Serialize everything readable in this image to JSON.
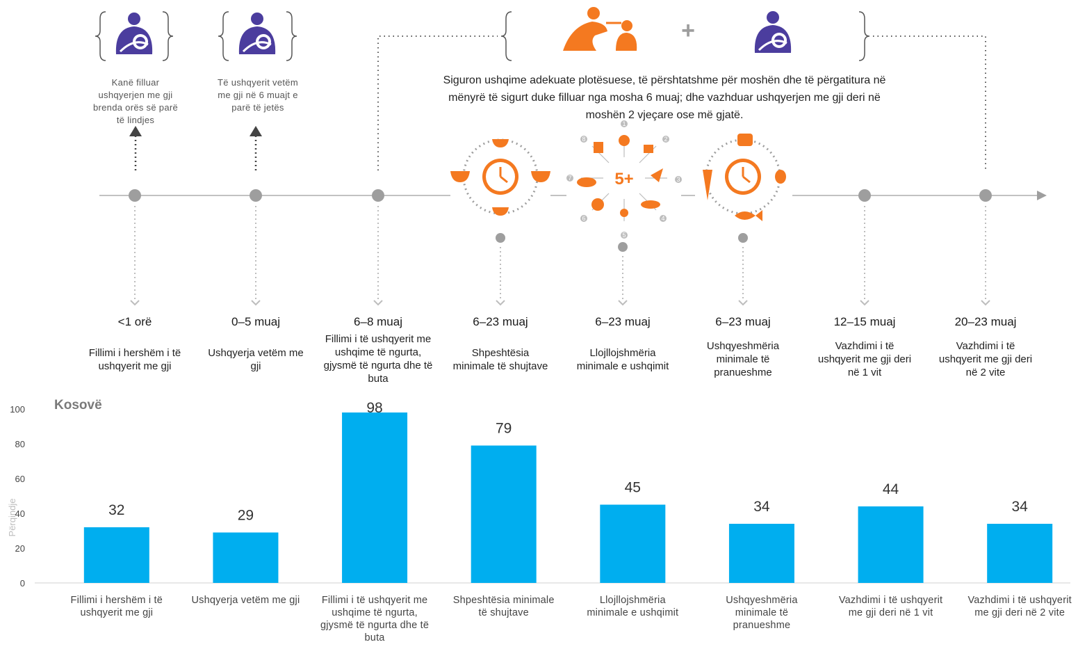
{
  "timeline": {
    "description_lines": [
      "Siguron ushqime adekuate plotësuese, të përshtatshme për moshën dhe të përgatitura në",
      "mënyrë të sigurt duke filluar nga mosha 6 muaj; dhe vazhduar ushqyerjen me gji deri në",
      "moshën 2 vjeçare ose më gjatë."
    ],
    "notes": [
      {
        "lines": [
          "Kanë filluar",
          "ushqyerjen me gji",
          "brenda orës së parë",
          "të lindjes"
        ]
      },
      {
        "lines": [
          "Të ushqyerit vetëm",
          "me gji në 6 muajt e",
          "parë të jetës"
        ]
      }
    ],
    "dietary_diversity_number": "5+",
    "food_group_numbers": [
      "1",
      "2",
      "3",
      "4",
      "5",
      "6",
      "7",
      "8"
    ],
    "plus_sign": "+",
    "stages": [
      {
        "range": "<1 orë",
        "desc": [
          "Fillimi i hershëm i të",
          "ushqyerit me gji"
        ]
      },
      {
        "range": "0–5 muaj",
        "desc": [
          "Ushqyerja vetëm me",
          "gji"
        ]
      },
      {
        "range": "6–8 muaj",
        "desc": [
          "Fillimi i të ushqyerit me",
          "ushqime të ngurta,",
          "gjysmë të ngurta dhe të",
          "buta"
        ]
      },
      {
        "range": "6–23 muaj",
        "desc": [
          "Shpeshtësia",
          "minimale të shujtave"
        ]
      },
      {
        "range": "6–23 muaj",
        "desc": [
          "Llojllojshmëria",
          "minimale e  ushqimit"
        ]
      },
      {
        "range": "6–23 muaj",
        "desc": [
          "Ushqyeshmëria",
          "minimale të",
          "pranueshme"
        ]
      },
      {
        "range": "12–15 muaj",
        "desc": [
          "Vazhdimi i të",
          "ushqyerit me gji deri",
          "në 1 vit"
        ]
      },
      {
        "range": "20–23 muaj",
        "desc": [
          "Vazhdimi i të",
          "ushqyerit me gji deri",
          "në 2 vite"
        ]
      }
    ]
  },
  "colors": {
    "bar": "#00aeef",
    "accent_orange": "#f47920",
    "accent_purple": "#4b3d9e",
    "timeline_gray": "#9e9e9e"
  },
  "icons": [
    "breastfeeding-icon",
    "feeding-child-icon",
    "clock-icon",
    "bowl-icon",
    "fish-icon",
    "carrot-icon",
    "bread-icon",
    "egg-icon"
  ],
  "chart_data": {
    "type": "bar",
    "title": "Kosovë",
    "ylabel": "Përqindje",
    "xlabel": "",
    "ylim": [
      0,
      100
    ],
    "yticks": [
      0,
      20,
      40,
      60,
      80,
      100
    ],
    "grid": false,
    "categories": [
      [
        "Fillimi i hershëm i të",
        "ushqyerit me gji"
      ],
      [
        "Ushqyerja vetëm me gji"
      ],
      [
        "Fillimi i të ushqyerit me",
        "ushqime të ngurta,",
        "gjysmë të ngurta dhe të",
        "buta"
      ],
      [
        "Shpeshtësia minimale",
        "të shujtave"
      ],
      [
        "Llojllojshmëria",
        "minimale e  ushqimit"
      ],
      [
        "Ushqyeshmëria",
        "minimale të",
        "pranueshme"
      ],
      [
        "Vazhdimi i të ushqyerit",
        "me gji deri në 1 vit"
      ],
      [
        "Vazhdimi i të ushqyerit",
        "me gji deri në 2 vite"
      ]
    ],
    "values": [
      32,
      29,
      98,
      79,
      45,
      34,
      44,
      34
    ]
  }
}
